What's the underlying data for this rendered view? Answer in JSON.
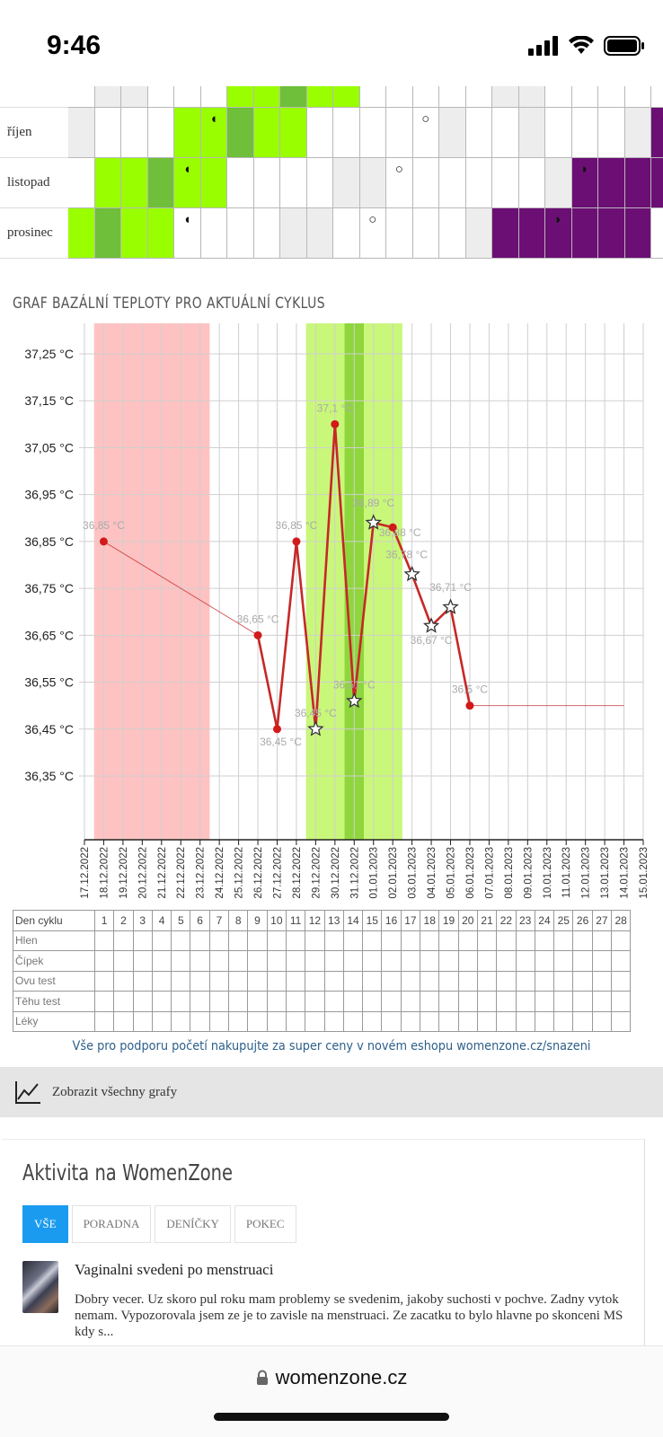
{
  "status_bar": {
    "time": "9:46"
  },
  "calendar": {
    "rows": [
      {
        "month": "říjen",
        "cells": [
          "g",
          "w",
          "w",
          "w",
          "l",
          "l",
          "m",
          "l",
          "l",
          "w",
          "w",
          "w",
          "w",
          "w",
          "g",
          "w",
          "w",
          "g",
          "w",
          "w",
          "w",
          "g",
          "p"
        ],
        "markers": [
          {
            "i": 5,
            "s": "◖"
          },
          {
            "i": 13,
            "s": "○"
          },
          {
            "i": 22,
            "s": "◖"
          }
        ]
      },
      {
        "month": "listopad",
        "cells": [
          "w",
          "l",
          "l",
          "m",
          "l",
          "l",
          "w",
          "w",
          "w",
          "w",
          "g",
          "g",
          "w",
          "w",
          "w",
          "w",
          "w",
          "w",
          "g",
          "p",
          "p",
          "p",
          "p"
        ],
        "markers": [
          {
            "i": 4,
            "s": "◖"
          },
          {
            "i": 12,
            "s": "○"
          },
          {
            "i": 19,
            "s": "◗"
          }
        ]
      },
      {
        "month": "prosinec",
        "cells": [
          "l",
          "m",
          "l",
          "l",
          "w",
          "w",
          "w",
          "w",
          "g",
          "g",
          "w",
          "w",
          "w",
          "w",
          "w",
          "g",
          "p",
          "p",
          "p",
          "p",
          "p",
          "p",
          "w"
        ],
        "markers": [
          {
            "i": 4,
            "s": "◖"
          },
          {
            "i": 11,
            "s": "○"
          },
          {
            "i": 18,
            "s": "◗"
          }
        ]
      }
    ],
    "top_partial": [
      "w",
      "g",
      "g",
      "w",
      "w",
      "w",
      "l",
      "l",
      "m",
      "l",
      "l",
      "w",
      "w",
      "w",
      "w",
      "w",
      "g",
      "g",
      "w",
      "w",
      "w",
      "w",
      "w"
    ]
  },
  "chart_title": "GRAF BAZÁLNÍ TEPLOTY PRO AKTUÁLNÍ CYKLUS",
  "chart_data": {
    "type": "line",
    "title": "GRAF BAZÁLNÍ TEPLOTY PRO AKTUÁLNÍ CYKLUS",
    "x": [
      "17.12.2022",
      "18.12.2022",
      "19.12.2022",
      "20.12.2022",
      "21.12.2022",
      "22.12.2022",
      "23.12.2022",
      "24.12.2022",
      "25.12.2022",
      "26.12.2022",
      "27.12.2022",
      "28.12.2022",
      "29.12.2022",
      "30.12.2022",
      "31.12.2022",
      "01.01.2023",
      "02.01.2023",
      "03.01.2023",
      "04.01.2023",
      "05.01.2023",
      "06.01.2023",
      "07.01.2023",
      "08.01.2023",
      "09.01.2023",
      "10.01.2023",
      "11.01.2023",
      "12.01.2023",
      "13.01.2023",
      "14.01.2023",
      "15.01.2023"
    ],
    "y_ticks": [
      "37,25 °C",
      "37,15 °C",
      "37,05 °C",
      "36,95 °C",
      "36,85 °C",
      "36,75 °C",
      "36,65 °C",
      "36,55 °C",
      "36,45 °C",
      "36,35 °C"
    ],
    "ylim": [
      36.25,
      37.35
    ],
    "series": [
      {
        "points": [
          {
            "x": "18.12.2022",
            "y": 36.85,
            "label": "36,85 °C",
            "marker": "dot"
          },
          {
            "x": "26.12.2022",
            "y": 36.65,
            "label": "36,65 °C",
            "marker": "dot"
          },
          {
            "x": "27.12.2022",
            "y": 36.45,
            "label": "36,45 °C",
            "marker": "dot"
          },
          {
            "x": "28.12.2022",
            "y": 36.85,
            "label": "36,85 °C",
            "marker": "dot"
          },
          {
            "x": "29.12.2022",
            "y": 36.45,
            "label": "36,45 °C",
            "marker": "star"
          },
          {
            "x": "30.12.2022",
            "y": 37.1,
            "label": "37,1 °C",
            "marker": "dot"
          },
          {
            "x": "31.12.2022",
            "y": 36.51,
            "label": "36,51 °C",
            "marker": "star"
          },
          {
            "x": "01.01.2023",
            "y": 36.89,
            "label": "36,89 °C",
            "marker": "star"
          },
          {
            "x": "02.01.2023",
            "y": 36.88,
            "label": "36,88 °C",
            "marker": "dot"
          },
          {
            "x": "03.01.2023",
            "y": 36.78,
            "label": "36,78 °C",
            "marker": "star"
          },
          {
            "x": "04.01.2023",
            "y": 36.67,
            "label": "36,67 °C",
            "marker": "star"
          },
          {
            "x": "05.01.2023",
            "y": 36.71,
            "label": "36,71 °C",
            "marker": "star"
          },
          {
            "x": "06.01.2023",
            "y": 36.5,
            "label": "36,5 °C",
            "marker": "dot"
          }
        ],
        "projection_until": "14.01.2023"
      }
    ],
    "bands": [
      {
        "from": "18.12.2022",
        "to": "23.12.2022",
        "color": "#ffc2c2",
        "meaning": "menstruation"
      },
      {
        "from": "29.12.2022",
        "to": "02.01.2023",
        "color": "#c9f77a",
        "meaning": "fertile"
      },
      {
        "from": "31.12.2022",
        "to": "31.12.2022",
        "color": "#8fd63d",
        "meaning": "ovulation"
      }
    ],
    "line_color": "#c62828",
    "grid": true
  },
  "table": {
    "header": "Den cyklu",
    "days": [
      "1",
      "2",
      "3",
      "4",
      "5",
      "6",
      "7",
      "8",
      "9",
      "10",
      "11",
      "12",
      "13",
      "14",
      "15",
      "16",
      "17",
      "18",
      "19",
      "20",
      "21",
      "22",
      "23",
      "24",
      "25",
      "26",
      "27",
      "28"
    ],
    "rows": [
      "Hlen",
      "Čípek",
      "Ovu test",
      "Těhu test",
      "Léky"
    ]
  },
  "promo_text": "Vše pro podporu početí nakupujte za super ceny v novém eshopu womenzone.cz/snazeni",
  "show_charts_label": "Zobrazit všechny grafy",
  "activity": {
    "title": "Aktivita na WomenZone",
    "tabs": [
      "VŠE",
      "PORADNA",
      "DENÍČKY",
      "POKEC"
    ],
    "post_title": "Vaginalni svedeni po menstruaci",
    "post_text": "Dobry vecer. Uz skoro pul roku mam problemy se svedenim, jakoby suchosti v pochve. Zadny vytok nemam. Vypozorovala jsem ze je to zavisle na menstruaci. Ze zacatku to bylo hlavne po skonceni MS kdy s..."
  },
  "url": "womenzone.cz",
  "colors": {
    "light_green": "#99ff00",
    "mid_green": "#6fbf3a",
    "gray_cell": "#ededed",
    "purple": "#6b0f74"
  }
}
